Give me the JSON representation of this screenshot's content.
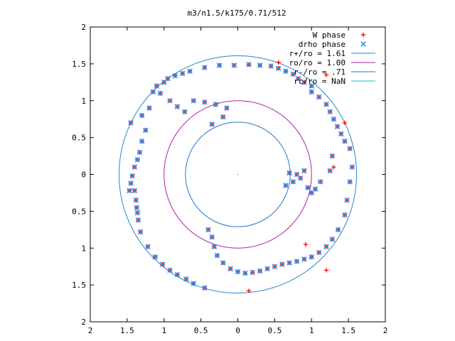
{
  "chart_data": {
    "type": "scatter",
    "title": "m3/n1.5/k175/0.71/512",
    "xlabel": "",
    "ylabel": "",
    "xlim": [
      -2,
      2
    ],
    "ylim": [
      -2,
      2
    ],
    "x_ticks": [
      "2",
      "1.5",
      "1",
      "0.5",
      "0",
      "0.5",
      "1",
      "1.5",
      "2"
    ],
    "y_ticks": [
      "2",
      "1.5",
      "1",
      "0.5",
      "0",
      "0.5",
      "1",
      "1.5",
      "2"
    ],
    "tick_values": [
      -2,
      -1.5,
      -1,
      -0.5,
      0,
      0.5,
      1,
      1.5,
      2
    ],
    "grid": false,
    "legend_position": "top-right",
    "legend": [
      {
        "label": "W phase",
        "marker": "+",
        "color": "#ff0000"
      },
      {
        "label": "drho phase",
        "marker": "x",
        "color": "#1e90ff"
      },
      {
        "label": "r+/ro = 1.61",
        "line": true,
        "color": "#2288cc"
      },
      {
        "label": "ro/ro = 1.00",
        "line": true,
        "color": "#aa22aa"
      },
      {
        "label": "r-/ro = .71",
        "line": true,
        "color": "#2277cc"
      },
      {
        "label": "rc/ro = NaN",
        "line": true,
        "color": "#22bbcc"
      }
    ],
    "circles": [
      {
        "radius": 1.61,
        "color": "#2288cc"
      },
      {
        "radius": 1.0,
        "color": "#aa22aa"
      },
      {
        "radius": 0.71,
        "color": "#2277cc"
      }
    ],
    "series": [
      {
        "name": "W phase",
        "marker": "+",
        "color": "#ff0000",
        "points": [
          [
            -1.47,
            -0.22
          ],
          [
            -1.45,
            -0.12
          ],
          [
            -1.43,
            -0.02
          ],
          [
            -1.4,
            -0.22
          ],
          [
            -1.38,
            -0.35
          ],
          [
            -1.37,
            -0.45
          ],
          [
            -1.36,
            -0.52
          ],
          [
            -1.35,
            -0.62
          ],
          [
            -1.32,
            -0.78
          ],
          [
            -1.22,
            -0.98
          ],
          [
            -1.12,
            -1.12
          ],
          [
            -1.02,
            -1.22
          ],
          [
            -0.92,
            -1.3
          ],
          [
            -0.82,
            -1.36
          ],
          [
            -0.7,
            -1.42
          ],
          [
            -0.6,
            -1.48
          ],
          [
            -0.45,
            -1.54
          ],
          [
            -0.4,
            -0.75
          ],
          [
            -0.35,
            -0.85
          ],
          [
            -0.32,
            -0.98
          ],
          [
            -0.28,
            -1.1
          ],
          [
            -0.2,
            -1.2
          ],
          [
            -0.1,
            -1.28
          ],
          [
            0.0,
            -1.32
          ],
          [
            0.1,
            -1.34
          ],
          [
            0.2,
            -1.33
          ],
          [
            0.3,
            -1.31
          ],
          [
            0.4,
            -1.28
          ],
          [
            0.5,
            -1.25
          ],
          [
            0.6,
            -1.22
          ],
          [
            0.7,
            -1.2
          ],
          [
            0.8,
            -1.18
          ],
          [
            0.9,
            -1.15
          ],
          [
            1.0,
            -1.12
          ],
          [
            1.1,
            -1.06
          ],
          [
            1.2,
            -0.98
          ],
          [
            1.28,
            -0.88
          ],
          [
            1.36,
            -0.75
          ],
          [
            1.45,
            -0.55
          ],
          [
            1.48,
            -0.35
          ],
          [
            1.52,
            -0.1
          ],
          [
            1.55,
            0.1
          ],
          [
            1.52,
            0.35
          ],
          [
            1.45,
            0.45
          ],
          [
            1.4,
            0.55
          ],
          [
            1.35,
            0.65
          ],
          [
            1.3,
            0.75
          ],
          [
            1.25,
            0.85
          ],
          [
            1.2,
            0.95
          ],
          [
            1.1,
            1.05
          ],
          [
            1.0,
            1.12
          ],
          [
            1.0,
            1.2
          ],
          [
            0.9,
            1.25
          ],
          [
            0.82,
            1.3
          ],
          [
            0.75,
            1.36
          ],
          [
            0.65,
            1.4
          ],
          [
            0.55,
            1.44
          ],
          [
            0.45,
            1.47
          ],
          [
            0.3,
            1.48
          ],
          [
            0.15,
            1.49
          ],
          [
            -0.05,
            1.48
          ],
          [
            -0.25,
            1.48
          ],
          [
            -0.45,
            1.45
          ],
          [
            -0.65,
            1.4
          ],
          [
            -0.75,
            1.37
          ],
          [
            -0.85,
            1.34
          ],
          [
            -0.95,
            1.3
          ],
          [
            -1.0,
            1.25
          ],
          [
            -1.1,
            1.2
          ],
          [
            -1.15,
            1.12
          ],
          [
            -1.05,
            1.1
          ],
          [
            -0.92,
            1.0
          ],
          [
            -0.82,
            0.92
          ],
          [
            -0.72,
            0.85
          ],
          [
            -1.25,
            0.6
          ],
          [
            -1.3,
            0.45
          ],
          [
            -1.33,
            0.3
          ],
          [
            -1.36,
            0.2
          ],
          [
            -1.4,
            0.1
          ],
          [
            -1.45,
            0.7
          ],
          [
            -1.3,
            0.8
          ],
          [
            -1.2,
            0.9
          ],
          [
            -0.6,
            1.0
          ],
          [
            -0.45,
            0.98
          ],
          [
            -0.3,
            0.95
          ],
          [
            -0.15,
            0.9
          ],
          [
            -0.2,
            0.78
          ],
          [
            -0.35,
            0.68
          ],
          [
            0.65,
            -0.15
          ],
          [
            0.75,
            -0.1
          ],
          [
            0.85,
            -0.05
          ],
          [
            0.9,
            0.05
          ],
          [
            0.95,
            -0.18
          ],
          [
            1.0,
            -0.25
          ],
          [
            1.05,
            -0.2
          ],
          [
            1.12,
            -0.1
          ],
          [
            1.25,
            0.05
          ],
          [
            1.28,
            0.25
          ],
          [
            0.8,
            0.0
          ],
          [
            0.7,
            0.02
          ],
          [
            0.55,
            1.52
          ],
          [
            1.2,
            1.35
          ],
          [
            1.45,
            0.7
          ],
          [
            1.3,
            0.1
          ],
          [
            0.92,
            -0.95
          ],
          [
            1.2,
            -1.3
          ],
          [
            0.15,
            -1.58
          ]
        ]
      },
      {
        "name": "drho phase",
        "marker": "x",
        "color": "#1e90ff",
        "points": [
          [
            -1.47,
            -0.22
          ],
          [
            -1.45,
            -0.12
          ],
          [
            -1.43,
            -0.02
          ],
          [
            -1.4,
            -0.22
          ],
          [
            -1.38,
            -0.35
          ],
          [
            -1.37,
            -0.45
          ],
          [
            -1.36,
            -0.52
          ],
          [
            -1.35,
            -0.62
          ],
          [
            -1.32,
            -0.78
          ],
          [
            -1.22,
            -0.98
          ],
          [
            -1.12,
            -1.12
          ],
          [
            -1.02,
            -1.22
          ],
          [
            -0.92,
            -1.3
          ],
          [
            -0.82,
            -1.36
          ],
          [
            -0.7,
            -1.42
          ],
          [
            -0.6,
            -1.48
          ],
          [
            -0.45,
            -1.54
          ],
          [
            -0.4,
            -0.75
          ],
          [
            -0.35,
            -0.85
          ],
          [
            -0.32,
            -0.98
          ],
          [
            -0.28,
            -1.1
          ],
          [
            -0.2,
            -1.2
          ],
          [
            -0.1,
            -1.28
          ],
          [
            0.0,
            -1.32
          ],
          [
            0.1,
            -1.34
          ],
          [
            0.2,
            -1.33
          ],
          [
            0.3,
            -1.31
          ],
          [
            0.4,
            -1.28
          ],
          [
            0.5,
            -1.25
          ],
          [
            0.6,
            -1.22
          ],
          [
            0.7,
            -1.2
          ],
          [
            0.8,
            -1.18
          ],
          [
            0.9,
            -1.15
          ],
          [
            1.0,
            -1.12
          ],
          [
            1.1,
            -1.06
          ],
          [
            1.2,
            -0.98
          ],
          [
            1.28,
            -0.88
          ],
          [
            1.36,
            -0.75
          ],
          [
            1.45,
            -0.55
          ],
          [
            1.48,
            -0.35
          ],
          [
            1.52,
            -0.1
          ],
          [
            1.55,
            0.1
          ],
          [
            1.52,
            0.35
          ],
          [
            1.45,
            0.45
          ],
          [
            1.4,
            0.55
          ],
          [
            1.35,
            0.65
          ],
          [
            1.3,
            0.75
          ],
          [
            1.25,
            0.85
          ],
          [
            1.2,
            0.95
          ],
          [
            1.1,
            1.05
          ],
          [
            1.0,
            1.12
          ],
          [
            1.0,
            1.2
          ],
          [
            0.9,
            1.25
          ],
          [
            0.82,
            1.3
          ],
          [
            0.75,
            1.36
          ],
          [
            0.65,
            1.4
          ],
          [
            0.55,
            1.44
          ],
          [
            0.45,
            1.47
          ],
          [
            0.3,
            1.48
          ],
          [
            0.15,
            1.49
          ],
          [
            -0.05,
            1.48
          ],
          [
            -0.25,
            1.48
          ],
          [
            -0.45,
            1.45
          ],
          [
            -0.65,
            1.4
          ],
          [
            -0.75,
            1.37
          ],
          [
            -0.85,
            1.34
          ],
          [
            -0.95,
            1.3
          ],
          [
            -1.0,
            1.25
          ],
          [
            -1.1,
            1.2
          ],
          [
            -1.15,
            1.12
          ],
          [
            -1.05,
            1.1
          ],
          [
            -0.92,
            1.0
          ],
          [
            -0.82,
            0.92
          ],
          [
            -0.72,
            0.85
          ],
          [
            -1.25,
            0.6
          ],
          [
            -1.3,
            0.45
          ],
          [
            -1.33,
            0.3
          ],
          [
            -1.36,
            0.2
          ],
          [
            -1.4,
            0.1
          ],
          [
            -1.45,
            0.7
          ],
          [
            -1.3,
            0.8
          ],
          [
            -1.2,
            0.9
          ],
          [
            -0.6,
            1.0
          ],
          [
            -0.45,
            0.98
          ],
          [
            -0.3,
            0.95
          ],
          [
            -0.15,
            0.9
          ],
          [
            -0.2,
            0.78
          ],
          [
            -0.35,
            0.68
          ],
          [
            0.65,
            -0.15
          ],
          [
            0.75,
            -0.1
          ],
          [
            0.85,
            -0.05
          ],
          [
            0.9,
            0.05
          ],
          [
            0.95,
            -0.18
          ],
          [
            1.0,
            -0.25
          ],
          [
            1.05,
            -0.2
          ],
          [
            1.12,
            -0.1
          ],
          [
            1.25,
            0.05
          ],
          [
            1.28,
            0.25
          ],
          [
            0.8,
            0.0
          ],
          [
            0.7,
            0.02
          ]
        ]
      }
    ]
  }
}
